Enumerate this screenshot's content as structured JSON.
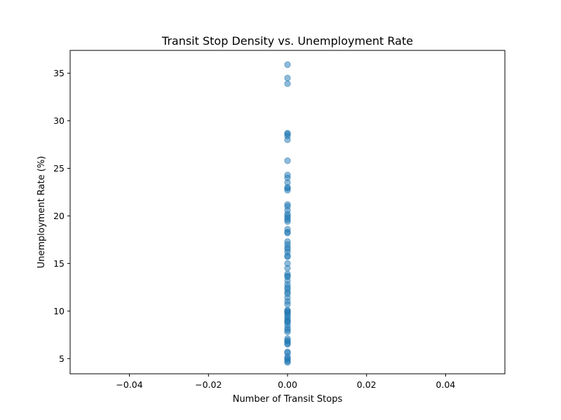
{
  "chart_data": {
    "type": "scatter",
    "title": "Transit Stop Density vs. Unemployment Rate",
    "xlabel": "Number of Transit Stops",
    "ylabel": "Unemployment Rate (%)",
    "xlim": [
      -0.055,
      0.055
    ],
    "ylim": [
      3.4,
      37.4
    ],
    "xticks": [
      -0.04,
      -0.02,
      0.0,
      0.02,
      0.04
    ],
    "xtick_labels": [
      "−0.04",
      "−0.02",
      "0.00",
      "0.02",
      "0.04"
    ],
    "yticks": [
      5,
      10,
      15,
      20,
      25,
      30,
      35
    ],
    "ytick_labels": [
      "5",
      "10",
      "15",
      "20",
      "25",
      "30",
      "35"
    ],
    "grid": false,
    "legend": "none",
    "marker_color": "#1f77b4",
    "marker_alpha": 0.5,
    "series": [
      {
        "x": [
          0,
          0,
          0,
          0,
          0,
          0,
          0,
          0,
          0,
          0,
          0,
          0,
          0,
          0,
          0,
          0,
          0,
          0,
          0,
          0,
          0,
          0,
          0,
          0,
          0,
          0,
          0,
          0,
          0,
          0,
          0,
          0,
          0,
          0,
          0,
          0,
          0,
          0,
          0,
          0,
          0,
          0,
          0,
          0,
          0,
          0,
          0,
          0,
          0,
          0,
          0,
          0,
          0,
          0,
          0,
          0,
          0,
          0,
          0,
          0,
          0,
          0,
          0,
          0,
          0,
          0,
          0,
          0,
          0,
          0,
          0,
          0
        ],
        "y": [
          35.9,
          34.5,
          33.9,
          28.7,
          28.6,
          28.4,
          28.0,
          25.8,
          24.3,
          24.0,
          23.5,
          23.0,
          22.9,
          22.7,
          21.2,
          21.0,
          20.6,
          20.2,
          20.0,
          19.8,
          19.6,
          19.4,
          18.6,
          18.3,
          18.2,
          17.3,
          17.0,
          16.7,
          16.5,
          16.2,
          15.8,
          15.7,
          15.0,
          14.5,
          13.9,
          13.7,
          13.6,
          13.2,
          12.8,
          12.5,
          12.3,
          12.0,
          11.8,
          11.4,
          11.0,
          10.7,
          10.1,
          10.0,
          9.9,
          9.8,
          9.6,
          9.4,
          9.2,
          9.0,
          8.9,
          8.8,
          8.5,
          8.2,
          8.0,
          7.8,
          7.1,
          6.9,
          6.8,
          6.6,
          6.5,
          5.7,
          5.6,
          5.2,
          5.0,
          4.9,
          4.7,
          4.6
        ]
      }
    ]
  }
}
